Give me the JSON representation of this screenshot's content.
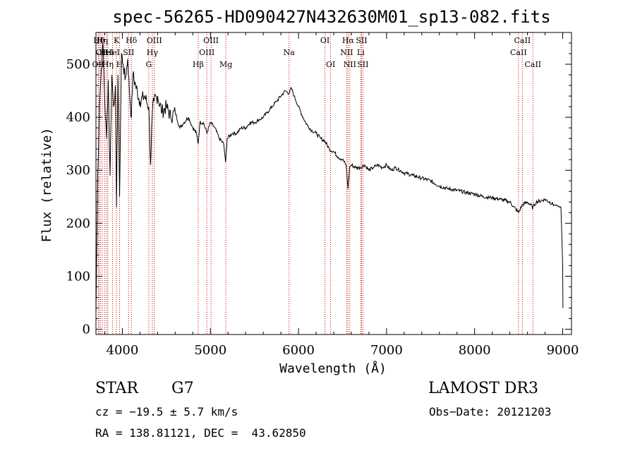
{
  "chart_data": {
    "type": "line",
    "title": "spec-56265-HD090427N432630M01_sp13-082.fits",
    "xlabel": "Wavelength (Å)",
    "ylabel": "Flux (relative)",
    "xlim": [
      3700,
      9100
    ],
    "ylim": [
      -10,
      560
    ],
    "xticks": [
      4000,
      5000,
      6000,
      7000,
      8000,
      9000
    ],
    "yticks": [
      0,
      100,
      200,
      300,
      400,
      500
    ],
    "grid": false,
    "series": [
      {
        "name": "flux",
        "x": [
          3700,
          3720,
          3740,
          3760,
          3780,
          3800,
          3820,
          3840,
          3860,
          3880,
          3900,
          3920,
          3933,
          3950,
          3968,
          3990,
          4010,
          4030,
          4060,
          4080,
          4102,
          4120,
          4150,
          4200,
          4250,
          4300,
          4320,
          4340,
          4360,
          4400,
          4450,
          4500,
          4550,
          4600,
          4650,
          4700,
          4750,
          4800,
          4840,
          4861,
          4880,
          4920,
          4960,
          5000,
          5050,
          5100,
          5150,
          5172,
          5190,
          5250,
          5300,
          5350,
          5400,
          5450,
          5500,
          5550,
          5600,
          5650,
          5700,
          5750,
          5800,
          5850,
          5893,
          5920,
          5950,
          6000,
          6050,
          6100,
          6150,
          6200,
          6250,
          6300,
          6350,
          6400,
          6450,
          6500,
          6540,
          6563,
          6580,
          6600,
          6650,
          6700,
          6750,
          6800,
          6850,
          6900,
          6950,
          7000,
          7050,
          7100,
          7200,
          7300,
          7400,
          7500,
          7600,
          7700,
          7800,
          7900,
          8000,
          8100,
          8200,
          8300,
          8400,
          8498,
          8542,
          8600,
          8662,
          8700,
          8800,
          8900,
          8980,
          9000,
          9003
        ],
        "values": [
          30,
          290,
          420,
          490,
          540,
          430,
          360,
          470,
          290,
          480,
          420,
          460,
          230,
          480,
          250,
          520,
          500,
          470,
          510,
          450,
          400,
          480,
          460,
          430,
          440,
          420,
          310,
          410,
          430,
          440,
          410,
          420,
          400,
          410,
          380,
          390,
          400,
          380,
          370,
          350,
          390,
          390,
          370,
          390,
          380,
          360,
          350,
          315,
          360,
          370,
          370,
          380,
          380,
          390,
          390,
          395,
          400,
          410,
          420,
          430,
          440,
          450,
          445,
          455,
          440,
          420,
          400,
          385,
          375,
          370,
          360,
          355,
          340,
          335,
          325,
          320,
          310,
          265,
          305,
          310,
          305,
          305,
          310,
          300,
          305,
          310,
          305,
          310,
          300,
          305,
          295,
          290,
          285,
          280,
          270,
          265,
          262,
          258,
          255,
          250,
          248,
          245,
          240,
          220,
          235,
          240,
          230,
          240,
          245,
          235,
          230,
          120,
          40
        ]
      }
    ],
    "line_markers": [
      {
        "wavelength": 3727,
        "label": "OII",
        "row": 2
      },
      {
        "wavelength": 3734,
        "label": "Hθ",
        "row": 0
      },
      {
        "wavelength": 3750,
        "label": "OI",
        "row": 1
      },
      {
        "wavelength": 3771,
        "label": "Hη",
        "row": 0
      },
      {
        "wavelength": 3798,
        "label": "H",
        "row": 1
      },
      {
        "wavelength": 3820,
        "label": "HeI",
        "row": 1
      },
      {
        "wavelength": 3835,
        "label": "Hη",
        "row": 2
      },
      {
        "wavelength": 3889,
        "label": "HeI",
        "row": 1
      },
      {
        "wavelength": 3933,
        "label": "K",
        "row": 0
      },
      {
        "wavelength": 3968,
        "label": "H",
        "row": 2
      },
      {
        "wavelength": 4070,
        "label": "SII",
        "row": 1
      },
      {
        "wavelength": 4102,
        "label": "Hδ",
        "row": 0
      },
      {
        "wavelength": 4300,
        "label": "G",
        "row": 2
      },
      {
        "wavelength": 4340,
        "label": "Hγ",
        "row": 1
      },
      {
        "wavelength": 4363,
        "label": "OIII",
        "row": 0
      },
      {
        "wavelength": 4861,
        "label": "Hβ",
        "row": 2
      },
      {
        "wavelength": 4959,
        "label": "OIII",
        "row": 1
      },
      {
        "wavelength": 5007,
        "label": "OIII",
        "row": 0
      },
      {
        "wavelength": 5175,
        "label": "Mg",
        "row": 2
      },
      {
        "wavelength": 5893,
        "label": "Na",
        "row": 1
      },
      {
        "wavelength": 6300,
        "label": "OI",
        "row": 0
      },
      {
        "wavelength": 6364,
        "label": "OI",
        "row": 2
      },
      {
        "wavelength": 6548,
        "label": "NII",
        "row": 1
      },
      {
        "wavelength": 6563,
        "label": "Hα",
        "row": 0
      },
      {
        "wavelength": 6583,
        "label": "NII",
        "row": 2
      },
      {
        "wavelength": 6707,
        "label": "Li",
        "row": 1
      },
      {
        "wavelength": 6716,
        "label": "SII",
        "row": 0
      },
      {
        "wavelength": 6731,
        "label": "SII",
        "row": 2
      },
      {
        "wavelength": 8498,
        "label": "CaII",
        "row": 1
      },
      {
        "wavelength": 8542,
        "label": "CaII",
        "row": 0
      },
      {
        "wavelength": 8662,
        "label": "CaII",
        "row": 2
      }
    ],
    "marker_color": "#cc0000"
  },
  "info": {
    "object_class": "STAR",
    "subclass": "G7",
    "survey": "LAMOST DR3",
    "cz": "cz = −19.5 ± 5.7 km/s",
    "obs_date": "Obs−Date: 20121203",
    "coords": "RA = 138.81121, DEC =  43.62850"
  }
}
